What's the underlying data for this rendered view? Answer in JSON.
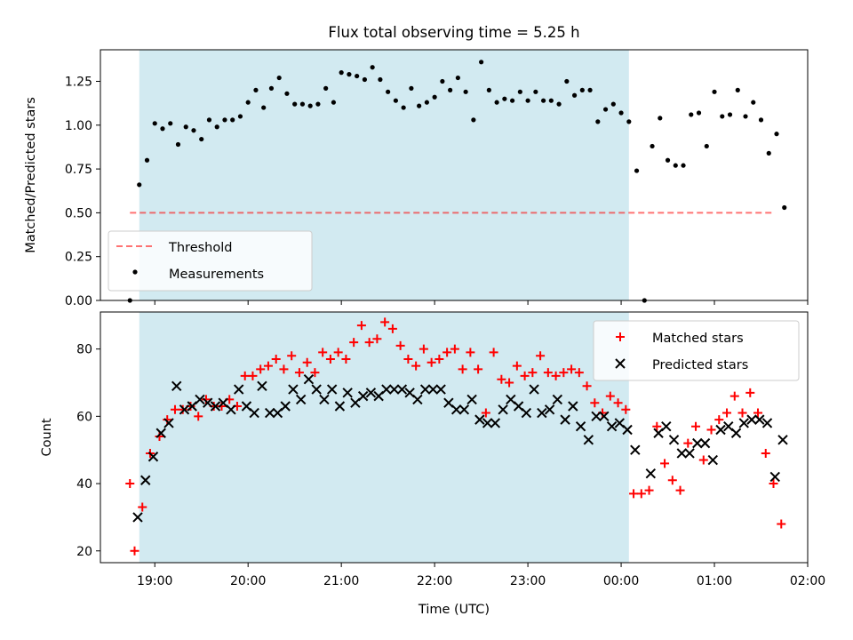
{
  "title": "Flux total observing time = 5.25 h",
  "colors": {
    "shade": "#add8e6",
    "threshold": "#ff0000",
    "matched": "#ff0000",
    "predicted": "#000000",
    "measurement": "#000000"
  },
  "chart_data": [
    {
      "type": "scatter",
      "ylabel": "Matched/Predicted stars",
      "ylim": [
        0,
        1.43
      ],
      "yticks": [
        0.0,
        0.25,
        0.5,
        0.75,
        1.0,
        1.25
      ],
      "ytick_labels": [
        "0.00",
        "0.25",
        "0.50",
        "0.75",
        "1.00",
        "1.25"
      ],
      "legend_position": "lower-left",
      "shaded_span": [
        "18:50",
        "00:05"
      ],
      "threshold": {
        "name": "Threshold",
        "value": 0.5,
        "x_range": [
          "18:44",
          "01:39"
        ]
      },
      "series": [
        {
          "name": "Measurements",
          "points": [
            [
              "18:44",
              0.0
            ],
            [
              "18:50",
              0.66
            ],
            [
              "18:55",
              0.8
            ],
            [
              "19:00",
              1.01
            ],
            [
              "19:05",
              0.98
            ],
            [
              "19:10",
              1.01
            ],
            [
              "19:15",
              0.89
            ],
            [
              "19:20",
              0.99
            ],
            [
              "19:25",
              0.97
            ],
            [
              "19:30",
              0.92
            ],
            [
              "19:35",
              1.03
            ],
            [
              "19:40",
              0.99
            ],
            [
              "19:45",
              1.03
            ],
            [
              "19:50",
              1.03
            ],
            [
              "19:55",
              1.05
            ],
            [
              "20:00",
              1.13
            ],
            [
              "20:05",
              1.2
            ],
            [
              "20:10",
              1.1
            ],
            [
              "20:15",
              1.21
            ],
            [
              "20:20",
              1.27
            ],
            [
              "20:25",
              1.18
            ],
            [
              "20:30",
              1.12
            ],
            [
              "20:35",
              1.12
            ],
            [
              "20:40",
              1.11
            ],
            [
              "20:45",
              1.12
            ],
            [
              "20:50",
              1.21
            ],
            [
              "20:55",
              1.13
            ],
            [
              "21:00",
              1.3
            ],
            [
              "21:05",
              1.29
            ],
            [
              "21:10",
              1.28
            ],
            [
              "21:15",
              1.26
            ],
            [
              "21:20",
              1.33
            ],
            [
              "21:25",
              1.26
            ],
            [
              "21:30",
              1.19
            ],
            [
              "21:35",
              1.14
            ],
            [
              "21:40",
              1.1
            ],
            [
              "21:45",
              1.21
            ],
            [
              "21:50",
              1.11
            ],
            [
              "21:55",
              1.13
            ],
            [
              "22:00",
              1.16
            ],
            [
              "22:05",
              1.25
            ],
            [
              "22:10",
              1.2
            ],
            [
              "22:15",
              1.27
            ],
            [
              "22:20",
              1.19
            ],
            [
              "22:25",
              1.03
            ],
            [
              "22:30",
              1.36
            ],
            [
              "22:35",
              1.2
            ],
            [
              "22:40",
              1.13
            ],
            [
              "22:45",
              1.15
            ],
            [
              "22:50",
              1.14
            ],
            [
              "22:55",
              1.19
            ],
            [
              "23:00",
              1.14
            ],
            [
              "23:05",
              1.19
            ],
            [
              "23:10",
              1.14
            ],
            [
              "23:15",
              1.14
            ],
            [
              "23:20",
              1.12
            ],
            [
              "23:25",
              1.25
            ],
            [
              "23:30",
              1.17
            ],
            [
              "23:35",
              1.2
            ],
            [
              "23:40",
              1.2
            ],
            [
              "23:45",
              1.02
            ],
            [
              "23:50",
              1.09
            ],
            [
              "23:55",
              1.12
            ],
            [
              "00:00",
              1.07
            ],
            [
              "00:05",
              1.02
            ],
            [
              "00:10",
              0.74
            ],
            [
              "00:15",
              0.0
            ],
            [
              "00:20",
              0.88
            ],
            [
              "00:25",
              1.04
            ],
            [
              "00:30",
              0.8
            ],
            [
              "00:35",
              0.77
            ],
            [
              "00:40",
              0.77
            ],
            [
              "00:45",
              1.06
            ],
            [
              "00:50",
              1.07
            ],
            [
              "00:55",
              0.88
            ],
            [
              "01:00",
              1.19
            ],
            [
              "01:05",
              1.05
            ],
            [
              "01:10",
              1.06
            ],
            [
              "01:15",
              1.2
            ],
            [
              "01:20",
              1.05
            ],
            [
              "01:25",
              1.13
            ],
            [
              "01:30",
              1.03
            ],
            [
              "01:35",
              0.84
            ],
            [
              "01:40",
              0.95
            ],
            [
              "01:45",
              0.53
            ]
          ]
        }
      ]
    },
    {
      "type": "scatter",
      "xlabel": "Time (UTC)",
      "ylabel": "Count",
      "ylim": [
        16.5,
        91
      ],
      "yticks": [
        20,
        40,
        60,
        80
      ],
      "ytick_labels": [
        "20",
        "40",
        "60",
        "80"
      ],
      "xlim": [
        "18:25",
        "02:00"
      ],
      "xticks": [
        "19:00",
        "20:00",
        "21:00",
        "22:00",
        "23:00",
        "00:00",
        "01:00",
        "02:00"
      ],
      "legend_position": "upper-right",
      "shaded_span": [
        "18:50",
        "00:05"
      ],
      "series": [
        {
          "name": "Matched stars",
          "points": [
            [
              "18:44",
              40
            ],
            [
              "18:47",
              20
            ],
            [
              "18:52",
              33
            ],
            [
              "18:57",
              49
            ],
            [
              "19:03",
              54
            ],
            [
              "19:08",
              59
            ],
            [
              "19:13",
              62
            ],
            [
              "19:18",
              62
            ],
            [
              "19:23",
              63
            ],
            [
              "19:28",
              60
            ],
            [
              "19:33",
              65
            ],
            [
              "19:38",
              63
            ],
            [
              "19:43",
              63
            ],
            [
              "19:48",
              65
            ],
            [
              "19:53",
              63
            ],
            [
              "19:58",
              72
            ],
            [
              "20:03",
              72
            ],
            [
              "20:08",
              74
            ],
            [
              "20:13",
              75
            ],
            [
              "20:18",
              77
            ],
            [
              "20:23",
              74
            ],
            [
              "20:28",
              78
            ],
            [
              "20:33",
              73
            ],
            [
              "20:38",
              76
            ],
            [
              "20:43",
              73
            ],
            [
              "20:48",
              79
            ],
            [
              "20:53",
              77
            ],
            [
              "20:58",
              79
            ],
            [
              "21:03",
              77
            ],
            [
              "21:08",
              82
            ],
            [
              "21:13",
              87
            ],
            [
              "21:18",
              82
            ],
            [
              "21:23",
              83
            ],
            [
              "21:28",
              88
            ],
            [
              "21:33",
              86
            ],
            [
              "21:38",
              81
            ],
            [
              "21:43",
              77
            ],
            [
              "21:48",
              75
            ],
            [
              "21:53",
              80
            ],
            [
              "21:58",
              76
            ],
            [
              "22:03",
              77
            ],
            [
              "22:08",
              79
            ],
            [
              "22:13",
              80
            ],
            [
              "22:18",
              74
            ],
            [
              "22:23",
              79
            ],
            [
              "22:28",
              74
            ],
            [
              "22:33",
              61
            ],
            [
              "22:38",
              79
            ],
            [
              "22:43",
              71
            ],
            [
              "22:48",
              70
            ],
            [
              "22:53",
              75
            ],
            [
              "22:58",
              72
            ],
            [
              "23:03",
              73
            ],
            [
              "23:08",
              78
            ],
            [
              "23:13",
              73
            ],
            [
              "23:18",
              72
            ],
            [
              "23:23",
              73
            ],
            [
              "23:28",
              74
            ],
            [
              "23:33",
              73
            ],
            [
              "23:38",
              69
            ],
            [
              "23:43",
              64
            ],
            [
              "23:48",
              61
            ],
            [
              "23:53",
              66
            ],
            [
              "23:58",
              64
            ],
            [
              "00:03",
              62
            ],
            [
              "00:08",
              37
            ],
            [
              "00:13",
              37
            ],
            [
              "00:18",
              38
            ],
            [
              "00:23",
              57
            ],
            [
              "00:28",
              46
            ],
            [
              "00:33",
              41
            ],
            [
              "00:38",
              38
            ],
            [
              "00:43",
              52
            ],
            [
              "00:48",
              57
            ],
            [
              "00:53",
              47
            ],
            [
              "00:58",
              56
            ],
            [
              "01:03",
              59
            ],
            [
              "01:08",
              61
            ],
            [
              "01:13",
              66
            ],
            [
              "01:18",
              61
            ],
            [
              "01:23",
              67
            ],
            [
              "01:28",
              61
            ],
            [
              "01:33",
              49
            ],
            [
              "01:38",
              40
            ],
            [
              "01:43",
              28
            ]
          ]
        },
        {
          "name": "Predicted stars",
          "points": [
            [
              "18:49",
              30
            ],
            [
              "18:54",
              41
            ],
            [
              "18:59",
              48
            ],
            [
              "19:04",
              55
            ],
            [
              "19:09",
              58
            ],
            [
              "19:14",
              69
            ],
            [
              "19:19",
              62
            ],
            [
              "19:24",
              63
            ],
            [
              "19:29",
              65
            ],
            [
              "19:34",
              64
            ],
            [
              "19:39",
              63
            ],
            [
              "19:44",
              64
            ],
            [
              "19:49",
              62
            ],
            [
              "19:54",
              68
            ],
            [
              "19:59",
              63
            ],
            [
              "20:04",
              61
            ],
            [
              "20:09",
              69
            ],
            [
              "20:14",
              61
            ],
            [
              "20:19",
              61
            ],
            [
              "20:24",
              63
            ],
            [
              "20:29",
              68
            ],
            [
              "20:34",
              65
            ],
            [
              "20:39",
              71
            ],
            [
              "20:44",
              68
            ],
            [
              "20:49",
              65
            ],
            [
              "20:54",
              68
            ],
            [
              "20:59",
              63
            ],
            [
              "21:04",
              67
            ],
            [
              "21:09",
              64
            ],
            [
              "21:14",
              66
            ],
            [
              "21:19",
              67
            ],
            [
              "21:24",
              66
            ],
            [
              "21:29",
              68
            ],
            [
              "21:34",
              68
            ],
            [
              "21:39",
              68
            ],
            [
              "21:44",
              67
            ],
            [
              "21:49",
              65
            ],
            [
              "21:54",
              68
            ],
            [
              "21:59",
              68
            ],
            [
              "22:04",
              68
            ],
            [
              "22:09",
              64
            ],
            [
              "22:14",
              62
            ],
            [
              "22:19",
              62
            ],
            [
              "22:24",
              65
            ],
            [
              "22:29",
              59
            ],
            [
              "22:34",
              58
            ],
            [
              "22:39",
              58
            ],
            [
              "22:44",
              62
            ],
            [
              "22:49",
              65
            ],
            [
              "22:54",
              63
            ],
            [
              "22:59",
              61
            ],
            [
              "23:04",
              68
            ],
            [
              "23:09",
              61
            ],
            [
              "23:14",
              62
            ],
            [
              "23:19",
              65
            ],
            [
              "23:24",
              59
            ],
            [
              "23:29",
              63
            ],
            [
              "23:34",
              57
            ],
            [
              "23:39",
              53
            ],
            [
              "23:44",
              60
            ],
            [
              "23:49",
              60
            ],
            [
              "23:54",
              57
            ],
            [
              "23:59",
              58
            ],
            [
              "00:04",
              56
            ],
            [
              "00:09",
              50
            ],
            [
              "00:19",
              43
            ],
            [
              "00:24",
              55
            ],
            [
              "00:29",
              57
            ],
            [
              "00:34",
              53
            ],
            [
              "00:39",
              49
            ],
            [
              "00:44",
              49
            ],
            [
              "00:49",
              52
            ],
            [
              "00:54",
              52
            ],
            [
              "00:59",
              47
            ],
            [
              "01:04",
              56
            ],
            [
              "01:09",
              57
            ],
            [
              "01:14",
              55
            ],
            [
              "01:19",
              58
            ],
            [
              "01:24",
              59
            ],
            [
              "01:29",
              59
            ],
            [
              "01:34",
              58
            ],
            [
              "01:39",
              42
            ],
            [
              "01:44",
              53
            ]
          ]
        }
      ]
    }
  ]
}
